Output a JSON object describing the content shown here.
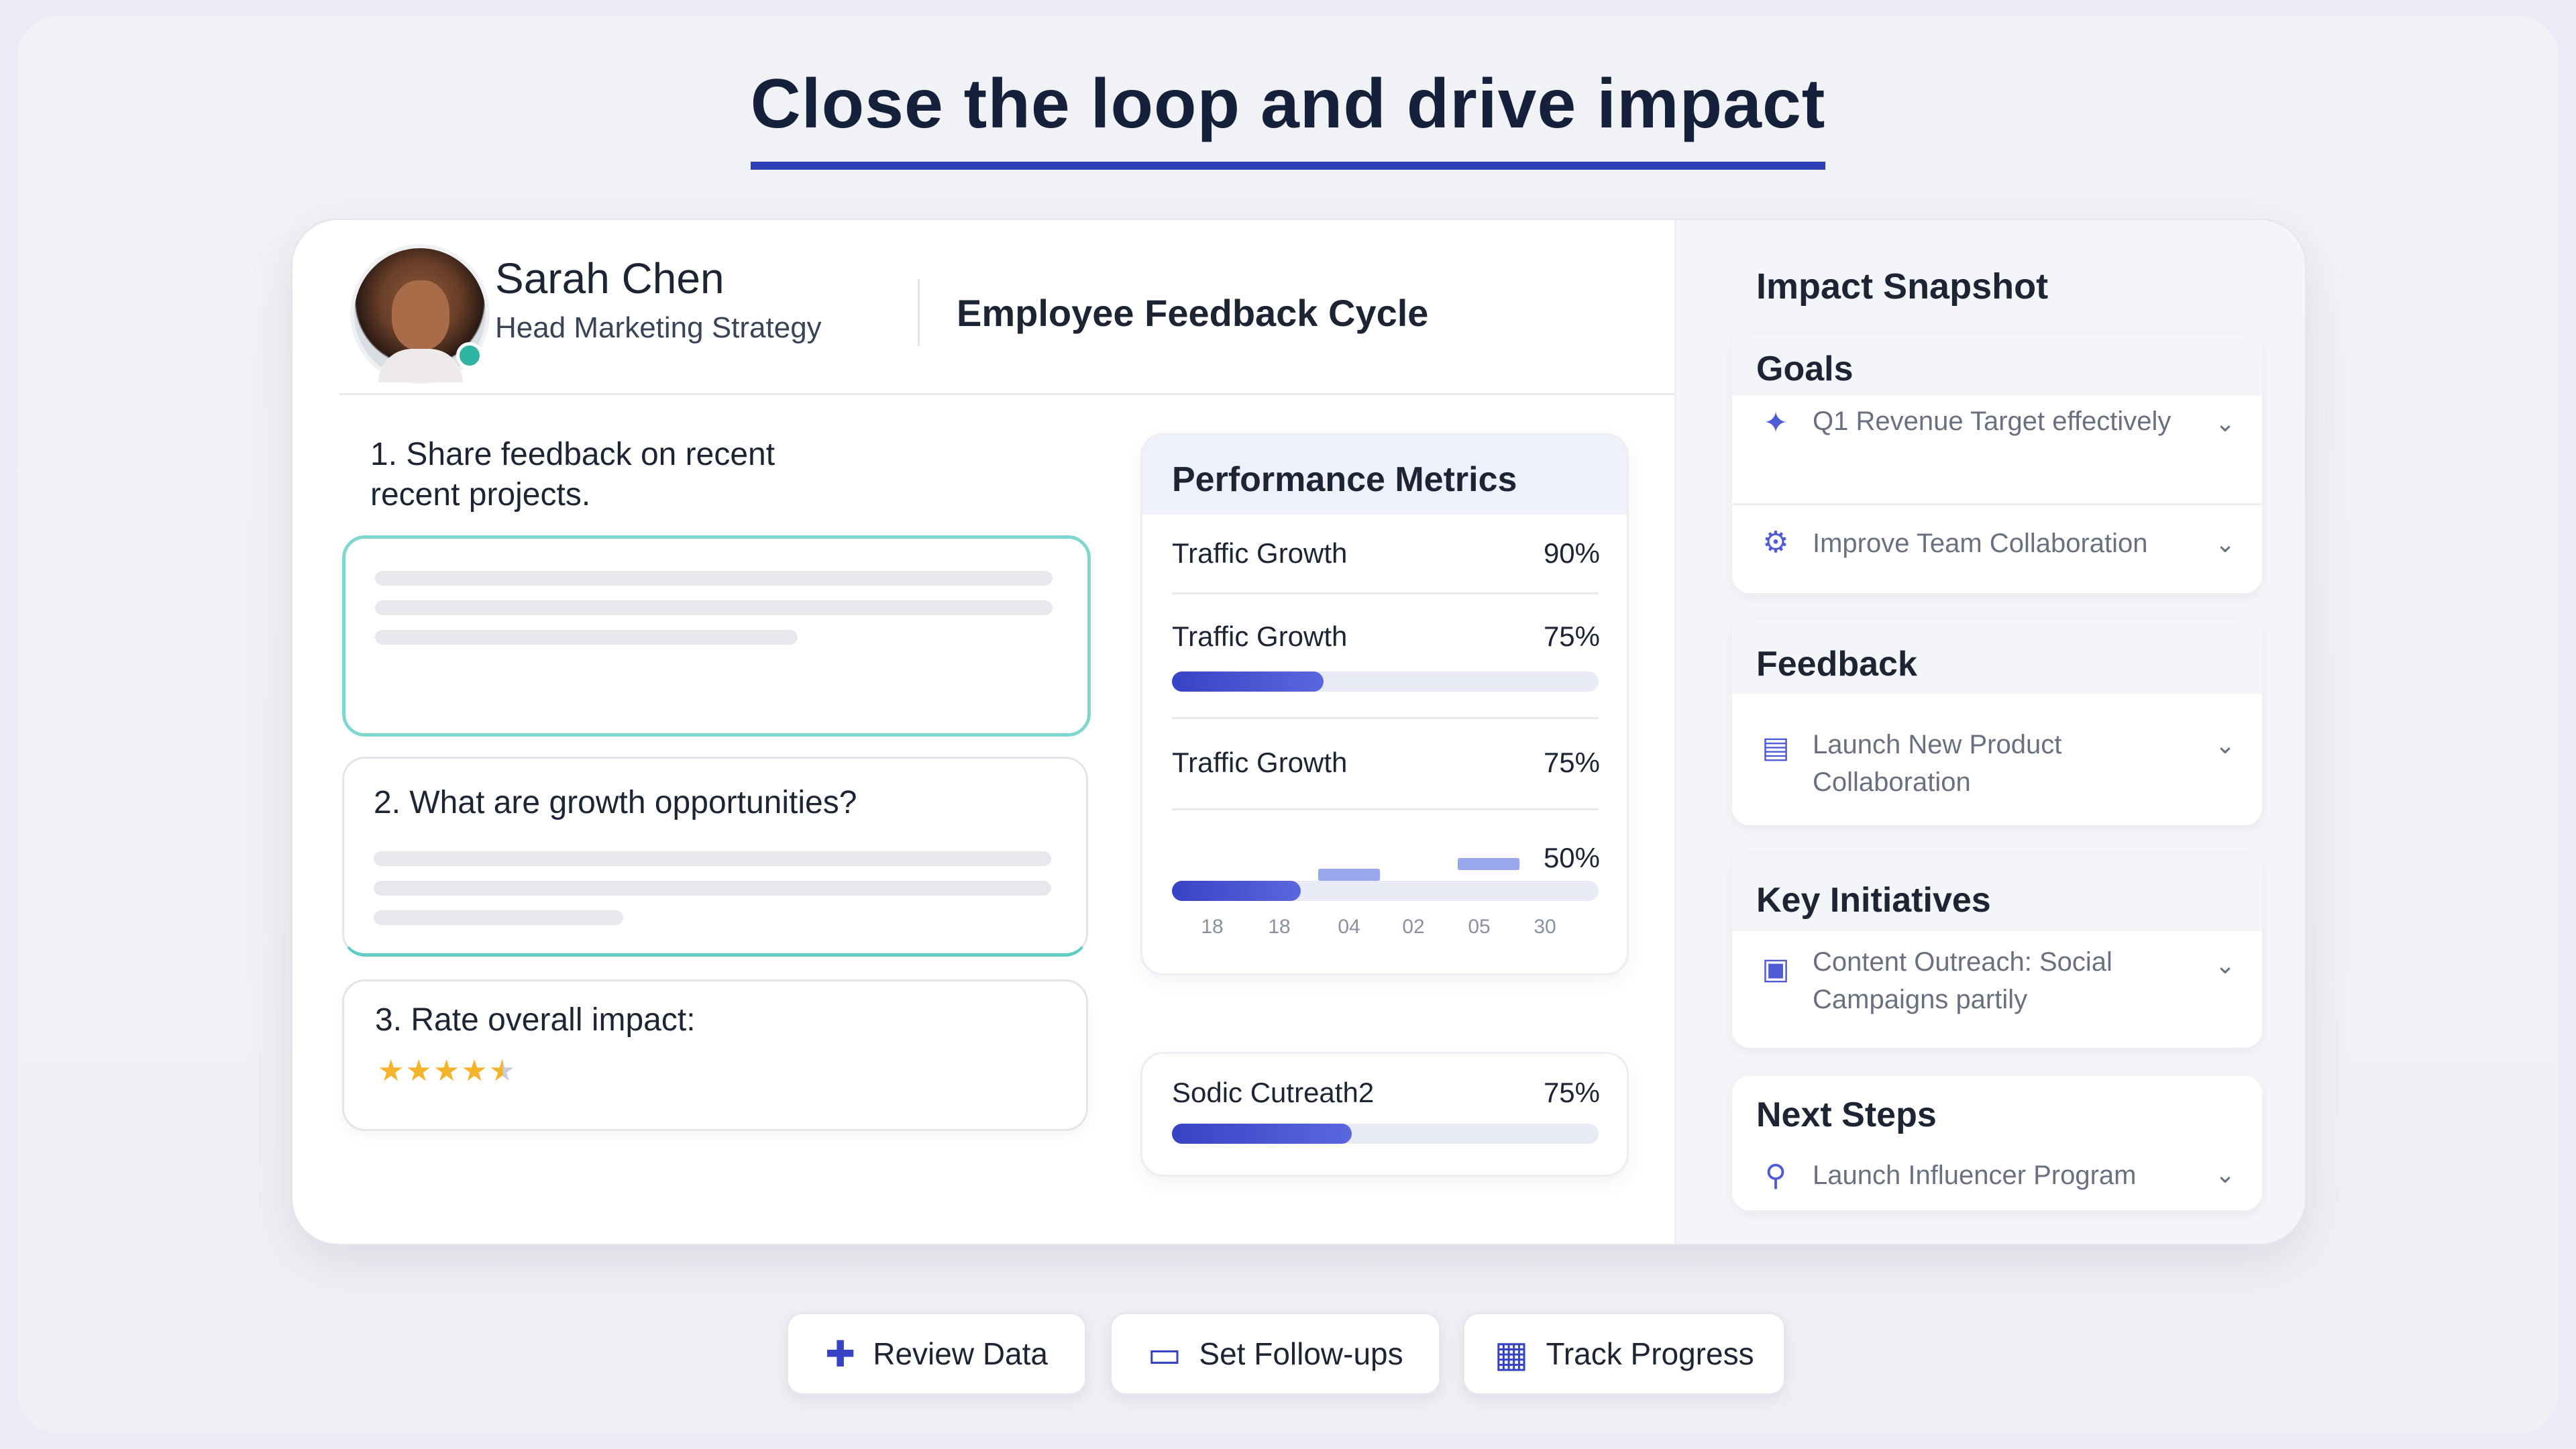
{
  "headline": "Close the loop and drive impact",
  "user": {
    "name": "Sarah Chen",
    "role": "Head Marketing Strategy"
  },
  "header": {
    "title": "Employee Feedback Cycle"
  },
  "questions": {
    "q1": "1. Share feedback on recent recent projects.",
    "q2": "2. What are growth opportunities?",
    "q3": "3. Rate overall impact:",
    "rating": 4.5
  },
  "metrics": {
    "title": "Performance Metrics",
    "rows": [
      {
        "label": "Traffic Growth",
        "value": "90%"
      },
      {
        "label": "Traffic Growth",
        "value": "75%"
      },
      {
        "label": "Traffic Growth",
        "value": "75%"
      },
      {
        "value": "50%"
      }
    ],
    "ticks": [
      "18",
      "18",
      "04",
      "02",
      "05",
      "30"
    ],
    "extra": {
      "label": "Sodic Cutreath2",
      "value": "75%"
    }
  },
  "side": {
    "title": "Impact Snapshot",
    "goals": {
      "title": "Goals",
      "items": [
        {
          "icon": "rocket-icon",
          "text": "Q1 Revenue Target effectively"
        },
        {
          "icon": "gear-icon",
          "text": "Improve Team Collaboration"
        }
      ]
    },
    "feedback": {
      "title": "Feedback",
      "items": [
        {
          "icon": "report-icon",
          "text": "Launch New Product Collaboration"
        }
      ]
    },
    "initiatives": {
      "title": "Key Initiatives",
      "items": [
        {
          "icon": "chat-icon",
          "text": "Content Outreach: Social Campaigns partily"
        }
      ]
    },
    "next": {
      "title": "Next Steps",
      "items": [
        {
          "icon": "person-icon",
          "text": "Launch Influencer Program"
        }
      ]
    }
  },
  "buttons": {
    "review": "Review Data",
    "followups": "Set Follow-ups",
    "track": "Track Progress"
  },
  "colors": {
    "accent": "#3743c4",
    "teal": "#5fcdc3",
    "star": "#f3b32a"
  }
}
